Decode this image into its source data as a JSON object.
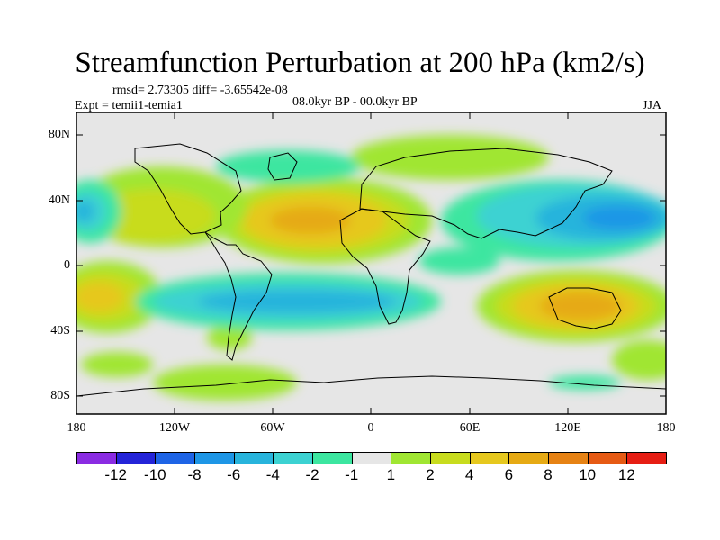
{
  "title": "Streamfunction Perturbation at 200 hPa (km2/s)",
  "stats_text": "rmsd= 2.73305 diff= -3.65542e-08",
  "expt_text": "Expt = temii1-temia1",
  "period_text": "08.0kyr BP - 00.0kyr BP",
  "season_text": "JJA",
  "y_ticks": [
    "80N",
    "40N",
    "0",
    "40S",
    "80S"
  ],
  "x_ticks": [
    "180",
    "120W",
    "60W",
    "0",
    "60E",
    "120E",
    "180"
  ],
  "colorbar": {
    "colors": [
      "#8a2be2",
      "#2424d8",
      "#1e64e6",
      "#1e96e6",
      "#28b4dc",
      "#3cd2d2",
      "#3ce6a0",
      "#e6e6e6",
      "#a0e632",
      "#c8dc1e",
      "#e6c81e",
      "#e6aa14",
      "#e68214",
      "#e65a14",
      "#e61e14"
    ],
    "labels": [
      "-12",
      "-10",
      "-8",
      "-6",
      "-4",
      "-2",
      "-1",
      "1",
      "2",
      "4",
      "6",
      "8",
      "10",
      "12"
    ]
  },
  "chart_data": {
    "type": "contour map",
    "variable": "200 hPa streamfunction perturbation",
    "units": "km2/s",
    "lon_range": [
      -180,
      180
    ],
    "lat_range": [
      -90,
      90
    ],
    "contour_levels": [
      -12,
      -10,
      -8,
      -6,
      -4,
      -2,
      -1,
      1,
      2,
      4,
      6,
      8,
      10,
      12
    ],
    "features": [
      {
        "name": "north-atlantic-positive-center",
        "lon": -30,
        "lat": 30,
        "value": 8
      },
      {
        "name": "australia-positive-center",
        "lon": 135,
        "lat": -25,
        "value": 8
      },
      {
        "name": "east-pacific-negative-center",
        "lon": -175,
        "lat": 32,
        "value": -4
      },
      {
        "name": "south-atlantic-negative-belt",
        "lon": -55,
        "lat": -18,
        "value": -4
      },
      {
        "name": "northwest-pacific-negative-center",
        "lon": 155,
        "lat": 32,
        "value": -8
      },
      {
        "name": "indian-ocean-negative-band",
        "lon": 75,
        "lat": 18,
        "value": -4
      },
      {
        "name": "southeast-pacific-positive-center",
        "lon": -170,
        "lat": -22,
        "value": 6
      }
    ]
  }
}
